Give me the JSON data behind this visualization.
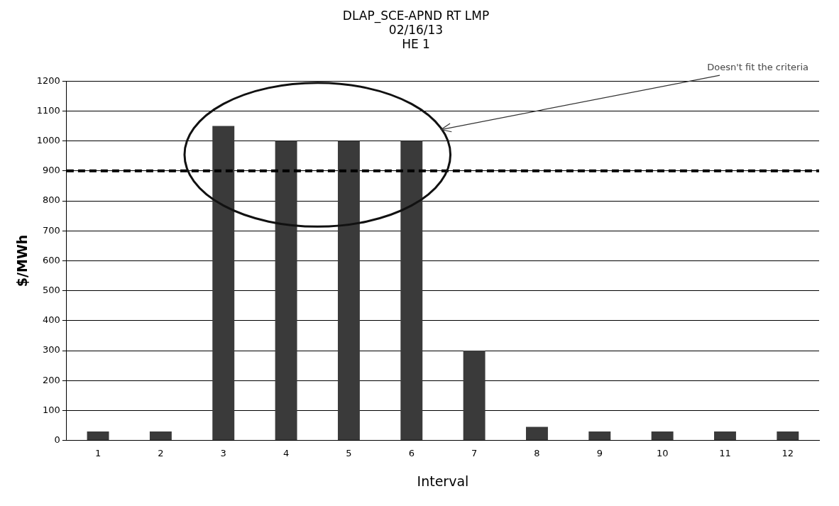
{
  "chart_data": {
    "type": "bar",
    "title": "DLAP_SCE-APND RT LMP\n02/16/13\nHE 1",
    "xlabel": "Interval",
    "ylabel": "$/MWh",
    "categories": [
      "1",
      "2",
      "3",
      "4",
      "5",
      "6",
      "7",
      "8",
      "9",
      "10",
      "11",
      "12"
    ],
    "values": [
      30,
      30,
      1050,
      1000,
      1000,
      1000,
      300,
      45,
      30,
      30,
      30,
      30
    ],
    "color": "#3a3a3a",
    "ylim": [
      0,
      1200
    ],
    "yticks": [
      0,
      100,
      200,
      300,
      400,
      500,
      600,
      700,
      800,
      900,
      1000,
      1100,
      1200
    ],
    "grid": "y",
    "legend": false,
    "ref_lines": [
      {
        "axis": "y",
        "value": 900,
        "color": "#000000",
        "line_style": "dashed"
      }
    ],
    "annotations": [
      "Doesn't fit the criteria"
    ]
  }
}
